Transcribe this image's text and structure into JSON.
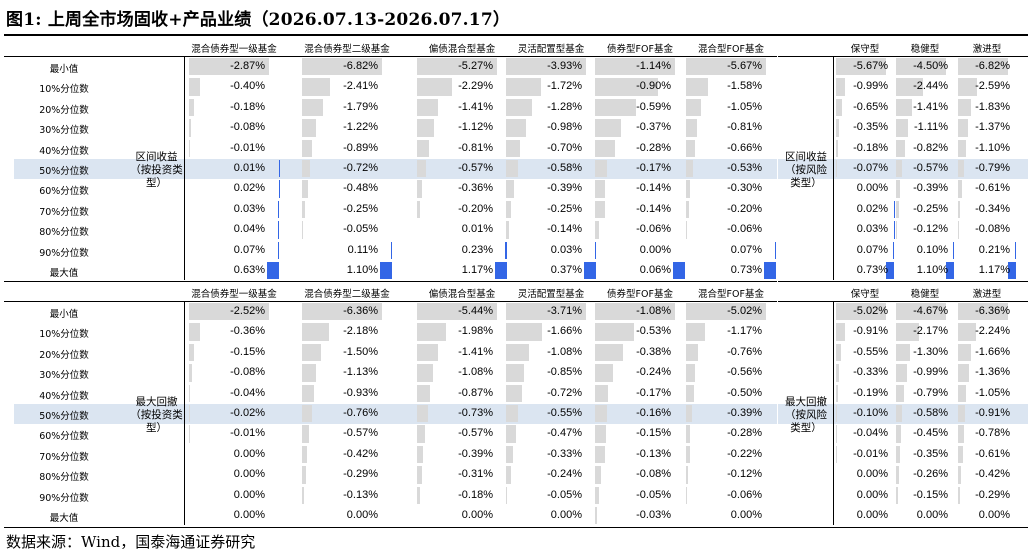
{
  "title": "图1:  上周全市场固收+产品业绩（2026.07.13-2026.07.17）",
  "source": "数据来源：Wind，国泰海通证券研究",
  "row_labels": [
    "最小值",
    "10%分位数",
    "20%分位数",
    "30%分位数",
    "40%分位数",
    "50%分位数",
    "60%分位数",
    "70%分位数",
    "80%分位数",
    "90%分位数",
    "最大值"
  ],
  "left_headers": [
    "混合债券型一级基金",
    "混合债券型二级基金",
    "偏债混合型基金",
    "灵活配置型基金",
    "债券型FOF基金",
    "混合型FOF基金"
  ],
  "right_headers": [
    "保守型",
    "稳健型",
    "激进型"
  ],
  "highlight_color": "#dbe5f1",
  "neg_bar_color": "#d9d9d9",
  "pos_bar_color": "#3366e6",
  "sections": [
    {
      "left_group": "区间收益（按投资类型）",
      "right_group": "区间收益（按风险类型）",
      "left": [
        [
          -2.87,
          -6.82,
          -5.27,
          -3.93,
          -1.14,
          -5.67
        ],
        [
          -0.4,
          -2.41,
          -2.29,
          -1.72,
          -0.9,
          -1.58
        ],
        [
          -0.18,
          -1.79,
          -1.41,
          -1.28,
          -0.59,
          -1.05
        ],
        [
          -0.08,
          -1.22,
          -1.12,
          -0.98,
          -0.37,
          -0.81
        ],
        [
          -0.01,
          -0.89,
          -0.81,
          -0.7,
          -0.28,
          -0.66
        ],
        [
          0.01,
          -0.72,
          -0.57,
          -0.58,
          -0.17,
          -0.53
        ],
        [
          0.02,
          -0.48,
          -0.36,
          -0.39,
          -0.14,
          -0.3
        ],
        [
          0.03,
          -0.25,
          -0.2,
          -0.25,
          -0.14,
          -0.2
        ],
        [
          0.04,
          -0.05,
          0.01,
          -0.14,
          -0.06,
          -0.06
        ],
        [
          0.07,
          0.11,
          0.23,
          0.03,
          0.0,
          0.07
        ],
        [
          0.63,
          1.1,
          1.17,
          0.37,
          0.06,
          0.73
        ]
      ],
      "right": [
        [
          -5.67,
          -4.5,
          -6.82
        ],
        [
          -0.99,
          -2.44,
          -2.59
        ],
        [
          -0.65,
          -1.41,
          -1.83
        ],
        [
          -0.35,
          -1.11,
          -1.37
        ],
        [
          -0.18,
          -0.82,
          -1.1
        ],
        [
          -0.07,
          -0.57,
          -0.79
        ],
        [
          0.0,
          -0.39,
          -0.61
        ],
        [
          0.02,
          -0.25,
          -0.34
        ],
        [
          0.03,
          -0.12,
          -0.08
        ],
        [
          0.07,
          0.1,
          0.21
        ],
        [
          0.73,
          1.1,
          1.17
        ]
      ]
    },
    {
      "left_group": "最大回撤（按投资类型）",
      "right_group": "最大回撤（按风险类型）",
      "left": [
        [
          -2.52,
          -6.36,
          -5.44,
          -3.71,
          -1.08,
          -5.02
        ],
        [
          -0.36,
          -2.18,
          -1.98,
          -1.66,
          -0.53,
          -1.17
        ],
        [
          -0.15,
          -1.5,
          -1.41,
          -1.08,
          -0.38,
          -0.76
        ],
        [
          -0.08,
          -1.13,
          -1.08,
          -0.85,
          -0.24,
          -0.56
        ],
        [
          -0.04,
          -0.93,
          -0.87,
          -0.72,
          -0.17,
          -0.5
        ],
        [
          -0.02,
          -0.76,
          -0.73,
          -0.55,
          -0.16,
          -0.39
        ],
        [
          -0.01,
          -0.57,
          -0.57,
          -0.47,
          -0.15,
          -0.28
        ],
        [
          0.0,
          -0.42,
          -0.39,
          -0.33,
          -0.13,
          -0.22
        ],
        [
          0.0,
          -0.29,
          -0.31,
          -0.24,
          -0.08,
          -0.12
        ],
        [
          0.0,
          -0.13,
          -0.18,
          -0.05,
          -0.05,
          -0.06
        ],
        [
          0.0,
          0.0,
          0.0,
          0.0,
          -0.03,
          0.0
        ]
      ],
      "right": [
        [
          -5.02,
          -4.67,
          -6.36
        ],
        [
          -0.91,
          -2.17,
          -2.24
        ],
        [
          -0.55,
          -1.3,
          -1.66
        ],
        [
          -0.33,
          -0.99,
          -1.36
        ],
        [
          -0.19,
          -0.79,
          -1.05
        ],
        [
          -0.1,
          -0.58,
          -0.91
        ],
        [
          -0.04,
          -0.45,
          -0.78
        ],
        [
          -0.01,
          -0.35,
          -0.61
        ],
        [
          0.0,
          -0.26,
          -0.42
        ],
        [
          0.0,
          -0.15,
          -0.29
        ],
        [
          0.0,
          0.0,
          0.0
        ]
      ]
    }
  ]
}
